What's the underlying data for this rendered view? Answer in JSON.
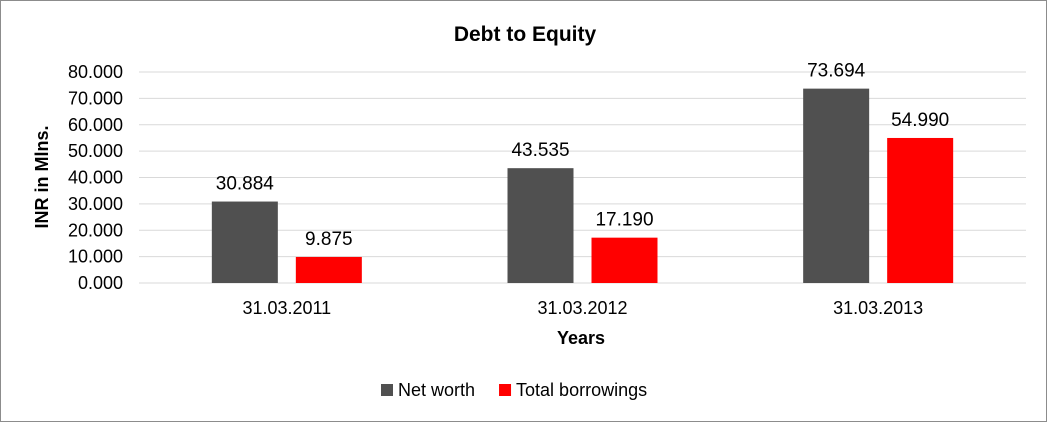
{
  "chart_data": {
    "type": "bar",
    "title": "Debt to Equity",
    "xlabel": "Years",
    "ylabel": "INR in Mlns.",
    "categories": [
      "31.03.2011",
      "31.03.2012",
      "31.03.2013"
    ],
    "series": [
      {
        "name": "Net worth",
        "color": "#505050",
        "values": [
          30.884,
          43.535,
          73.694
        ],
        "labels": [
          "30.884",
          "43.535",
          "73.694"
        ]
      },
      {
        "name": "Total borrowings",
        "color": "#ff0000",
        "values": [
          9.875,
          17.19,
          54.99
        ],
        "labels": [
          "9.875",
          "17.190",
          "54.990"
        ]
      }
    ],
    "ylim": [
      0,
      80
    ],
    "yticks": [
      0,
      10,
      20,
      30,
      40,
      50,
      60,
      70,
      80
    ],
    "ytick_labels": [
      "0.000",
      "10.000",
      "20.000",
      "30.000",
      "40.000",
      "50.000",
      "60.000",
      "70.000",
      "80.000"
    ],
    "grid": true,
    "legend_position": "bottom"
  }
}
